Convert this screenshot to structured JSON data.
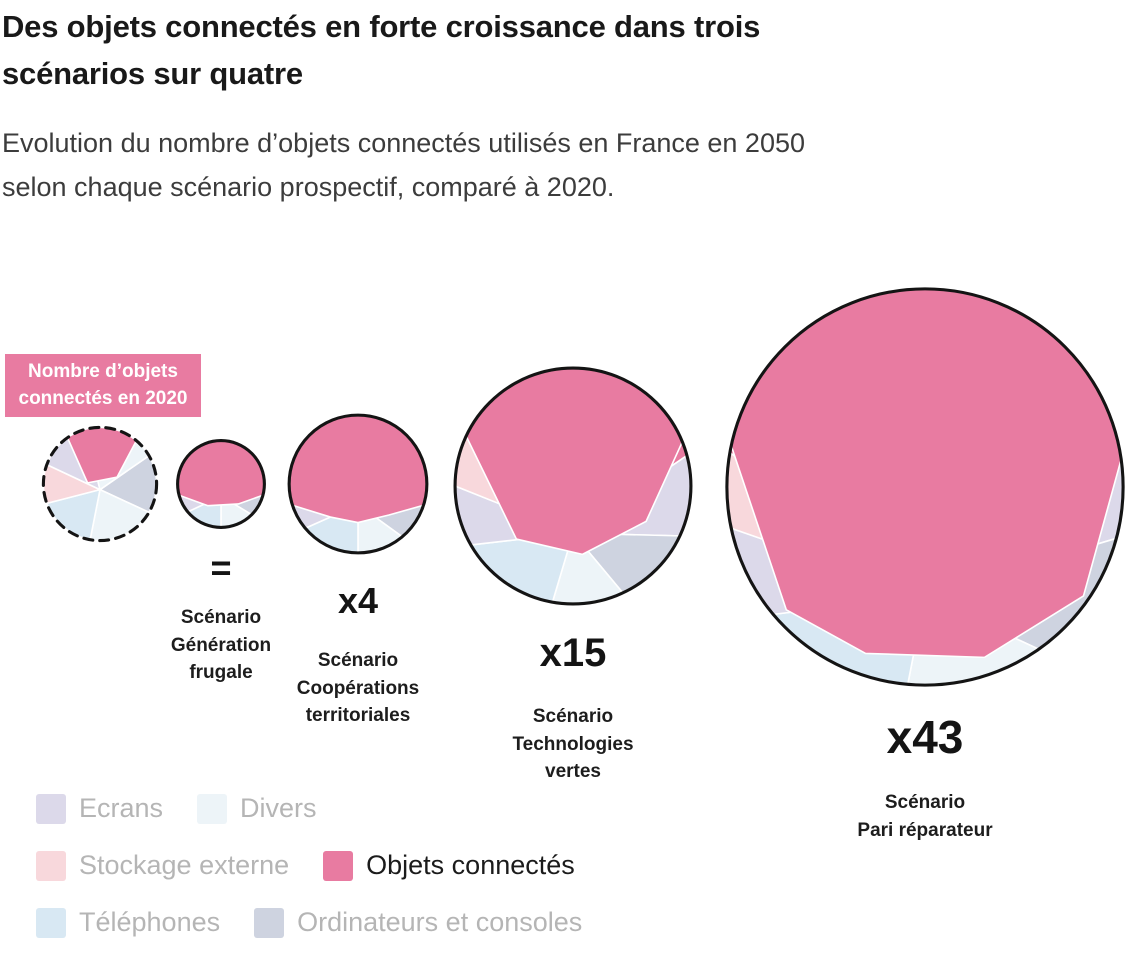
{
  "title": "Des objets connectés en forte croissance dans trois\nscénarios sur quatre",
  "subtitle": "Evolution du nombre d’objets connectés utilisés en France en 2050\nselon chaque scénario prospectif, comparé à 2020.",
  "baseline_badge": "Nombre d’objets\nconnectés en 2020",
  "chart_data": {
    "type": "proportional-voronoi-circles",
    "baseline": {
      "label": "Nombre d’objets connectés en 2020",
      "year": 2020,
      "multiplier": 1,
      "style": "dashed-outline"
    },
    "scenarios": [
      {
        "name": "Scénario\nGénération\nfrugale",
        "multiplier_label": "=",
        "multiplier": 1
      },
      {
        "name": "Scénario\nCoopérations\nterritoriales",
        "multiplier_label": "x4",
        "multiplier": 4
      },
      {
        "name": "Scénario\nTechnologies\nvertes",
        "multiplier_label": "x15",
        "multiplier": 15
      },
      {
        "name": "Scénario\nPari réparateur",
        "multiplier_label": "x43",
        "multiplier": 43
      }
    ],
    "categories": {
      "ecrans": {
        "label": "Ecrans",
        "color": "#dcd9ea",
        "highlight": false
      },
      "divers": {
        "label": "Divers",
        "color": "#edf4f8",
        "highlight": false
      },
      "stockage": {
        "label": "Stockage externe",
        "color": "#f8d8dc",
        "highlight": false
      },
      "objets": {
        "label": "Objets connectés",
        "color": "#e87ba1",
        "highlight": true
      },
      "telephones": {
        "label": "Téléphones",
        "color": "#d8e8f3",
        "highlight": false
      },
      "ordinateurs": {
        "label": "Ordinateurs et consoles",
        "color": "#ced3e0",
        "highlight": false
      }
    },
    "legend_rows": [
      [
        "ecrans",
        "divers"
      ],
      [
        "stockage",
        "objets"
      ],
      [
        "telephones",
        "ordinateurs"
      ]
    ]
  },
  "colors": {
    "outline": "#141414",
    "title": "#191919",
    "subtitle": "#3c3c3c",
    "legend_text": "#b5b5b5",
    "accent": "#e87ba1"
  }
}
